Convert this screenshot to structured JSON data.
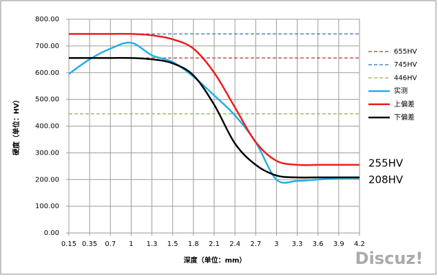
{
  "chart_data": {
    "type": "line",
    "x_label": "深度（单位：mm）",
    "y_label": "硬度（单位：HV）",
    "categories": [
      "0.15",
      "0.35",
      "0.7",
      "1",
      "1.3",
      "1.5",
      "1.8",
      "2.1",
      "2.4",
      "2.7",
      "3",
      "3.3",
      "3.6",
      "3.9",
      "4.2"
    ],
    "ylim": [
      0,
      800
    ],
    "yticks": [
      {
        "value": 0,
        "label": "0.00"
      },
      {
        "value": 100,
        "label": "100.00"
      },
      {
        "value": 200,
        "label": "200.00"
      },
      {
        "value": 300,
        "label": "300.00"
      },
      {
        "value": 400,
        "label": "400.00"
      },
      {
        "value": 500,
        "label": "500.00"
      },
      {
        "value": 600,
        "label": "600.00"
      },
      {
        "value": 700,
        "label": "700.00"
      },
      {
        "value": 800,
        "label": "800.00"
      }
    ],
    "grid": true,
    "legend": "right",
    "series": [
      {
        "name": "655HV",
        "color": "#c0504d",
        "dashed": true,
        "values": [
          655,
          655,
          655,
          655,
          655,
          655,
          655,
          655,
          655,
          655,
          655,
          655,
          655,
          655,
          655
        ]
      },
      {
        "name": "745HV",
        "color": "#4f81bd",
        "dashed": true,
        "values": [
          745,
          745,
          745,
          745,
          745,
          745,
          745,
          745,
          745,
          745,
          745,
          745,
          745,
          745,
          745
        ]
      },
      {
        "name": "446HV",
        "color": "#9bbb59",
        "dashed": true,
        "values": [
          446,
          446,
          446,
          446,
          446,
          446,
          446,
          446,
          446,
          446,
          446,
          446,
          446,
          446,
          446
        ]
      },
      {
        "name": "实测",
        "color": "#1fb0e8",
        "dashed": false,
        "values": [
          595,
          650,
          690,
          712,
          665,
          640,
          585,
          515,
          440,
          340,
          200,
          195,
          200,
          205,
          205
        ]
      },
      {
        "name": "上偏差",
        "color": "#ee1c1c",
        "dashed": false,
        "values": [
          745,
          745,
          745,
          745,
          740,
          725,
          690,
          600,
          470,
          340,
          270,
          255,
          255,
          255,
          255
        ]
      },
      {
        "name": "下偏差",
        "color": "#000000",
        "dashed": false,
        "values": [
          655,
          655,
          655,
          655,
          650,
          635,
          590,
          480,
          335,
          255,
          215,
          208,
          208,
          208,
          208
        ]
      }
    ],
    "annotations": [
      "255HV",
      "208HV"
    ],
    "watermark": "Discuz!"
  }
}
